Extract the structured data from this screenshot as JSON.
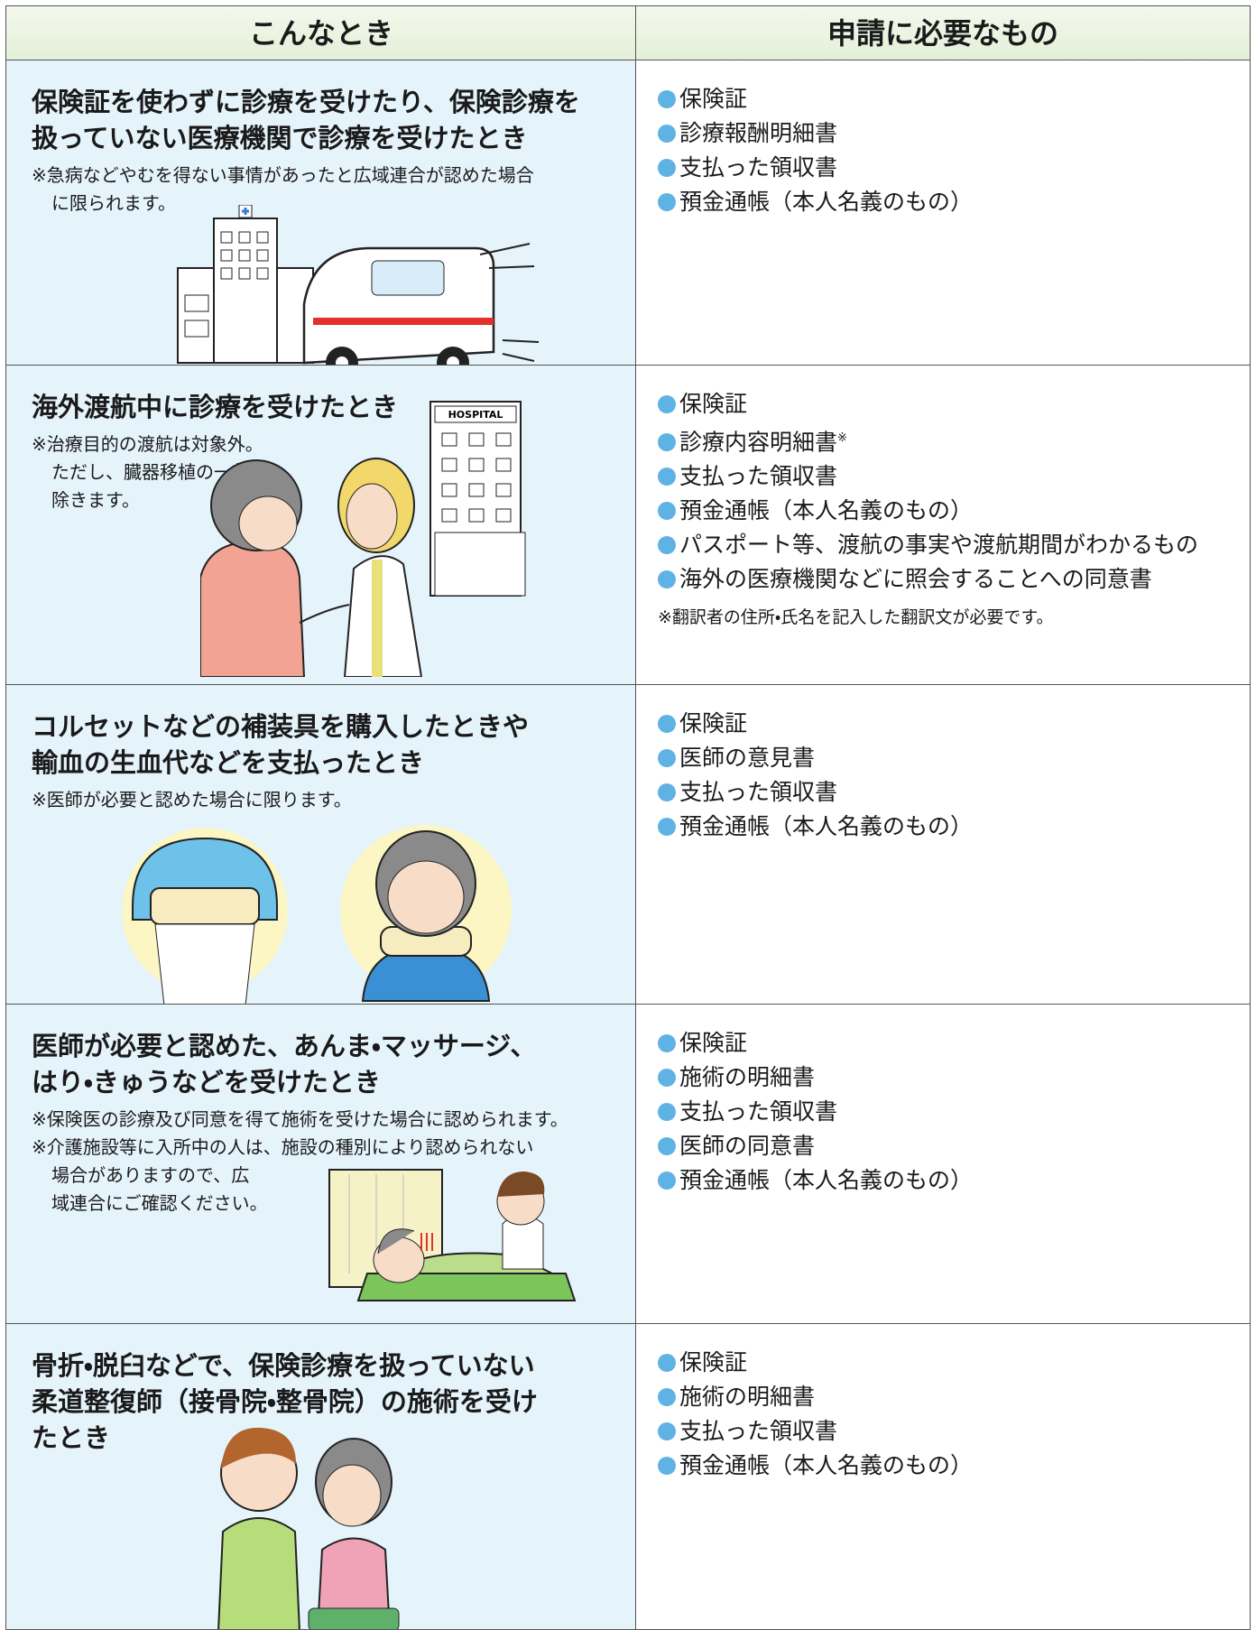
{
  "header": {
    "left": "こんなとき",
    "right": "申請に必要なもの"
  },
  "rows": [
    {
      "title_lines": [
        "保険証を使わずに診療を受けたり、保険診療を",
        "扱っていない医療機関で診療を受けたとき"
      ],
      "notes": [
        "※急病などやむを得ない事情があったと広域連合が認めた場合",
        "に限られます。"
      ],
      "items": [
        "保険証",
        "診療報酬明細書",
        "支払った領収書",
        "預金通帳（本人名義のもの）"
      ]
    },
    {
      "title_lines": [
        "海外渡航中に診療を受けたとき"
      ],
      "notes": [
        "※治療目的の渡航は対象外。",
        "ただし、臓器移植の一部を",
        "除きます。"
      ],
      "illustration_label": "HOSPITAL",
      "items": [
        "保険証",
        "診療内容明細書",
        "支払った領収書",
        "預金通帳（本人名義のもの）",
        "パスポート等、渡航の事実や渡航期間がわかるもの",
        "海外の医療機関などに照会することへの同意書"
      ],
      "item_mark": "※",
      "footnote": "※翻訳者の住所・氏名を記入した翻訳文が必要です。"
    },
    {
      "title_lines": [
        "コルセットなどの補装具を購入したときや",
        "輸血の生血代などを支払ったとき"
      ],
      "notes": [
        "※医師が必要と認めた場合に限ります。"
      ],
      "items": [
        "保険証",
        "医師の意見書",
        "支払った領収書",
        "預金通帳（本人名義のもの）"
      ]
    },
    {
      "title_lines": [
        "医師が必要と認めた、あんま・マッサージ、",
        "はり・きゅうなどを受けたとき"
      ],
      "notes": [
        "※保険医の診療及び同意を得て施術を受けた場合に認められます。",
        "※介護施設等に入所中の人は、施設の種別により認められない",
        "場合がありますので、広",
        "域連合にご確認ください。"
      ],
      "items": [
        "保険証",
        "施術の明細書",
        "支払った領収書",
        "医師の同意書",
        "預金通帳（本人名義のもの）"
      ]
    },
    {
      "title_lines": [
        "骨折・脱臼などで、保険診療を扱っていない",
        "柔道整復師（接骨院・整骨院）の施術を受け",
        "たとき"
      ],
      "notes": [],
      "items": [
        "保険証",
        "施術の明細書",
        "支払った領収書",
        "預金通帳（本人名義のもの）"
      ]
    }
  ]
}
